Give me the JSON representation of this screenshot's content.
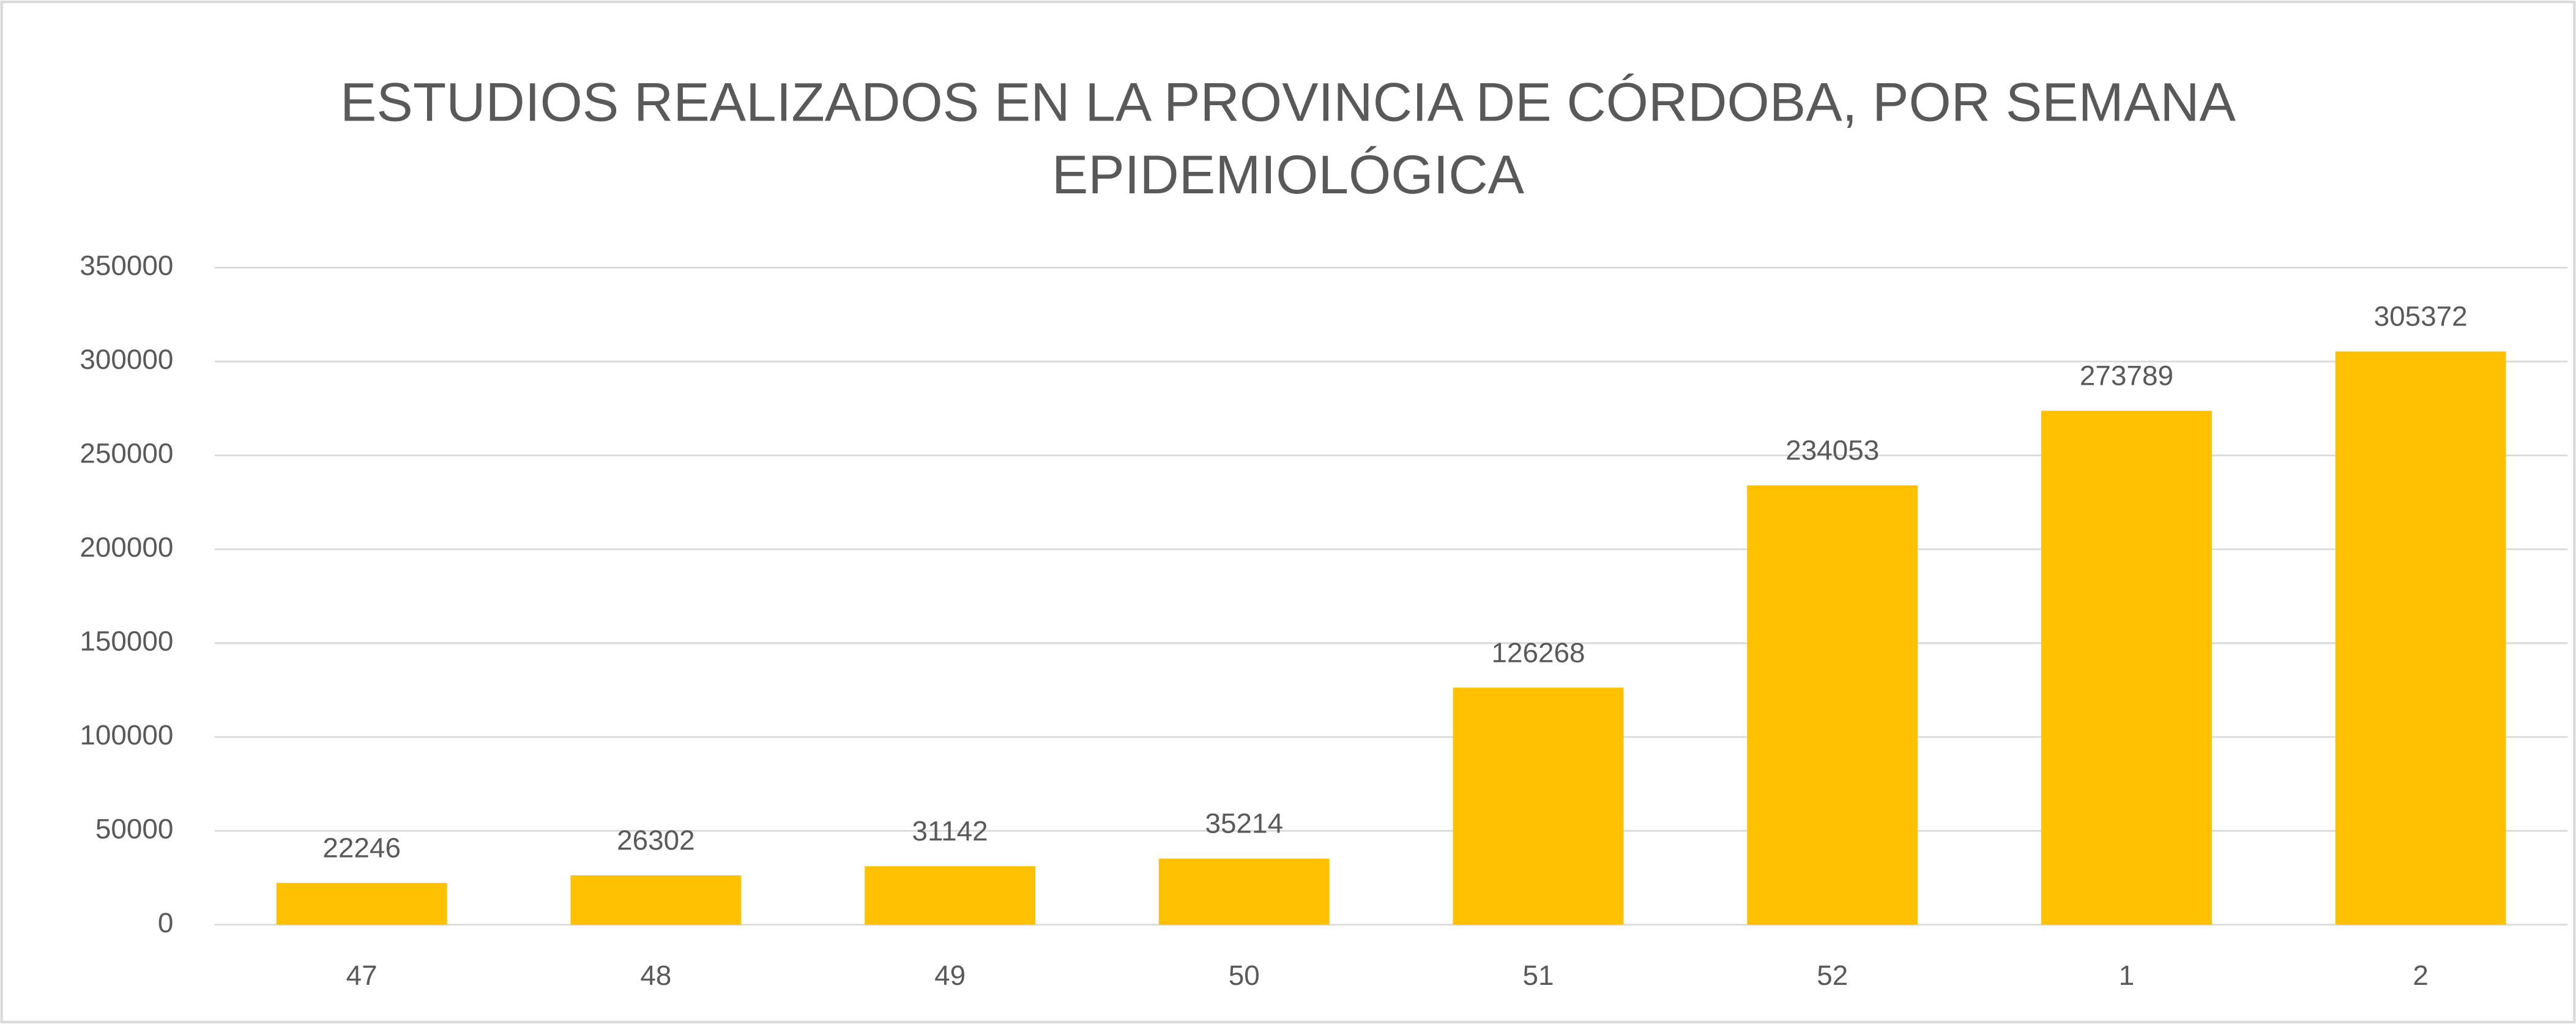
{
  "chart_data": {
    "type": "bar",
    "title": "ESTUDIOS REALIZADOS EN LA PROVINCIA DE CÓRDOBA, POR SEMANA EPIDEMIOLÓGICA",
    "categories": [
      "47",
      "48",
      "49",
      "50",
      "51",
      "52",
      "1",
      "2"
    ],
    "values": [
      22246,
      26302,
      31142,
      35214,
      126268,
      234053,
      273789,
      305372
    ],
    "color": "#ffc000",
    "ylim": [
      0,
      350000
    ],
    "yticks": [
      0,
      50000,
      100000,
      150000,
      200000,
      250000,
      300000,
      350000
    ],
    "grid": true
  }
}
